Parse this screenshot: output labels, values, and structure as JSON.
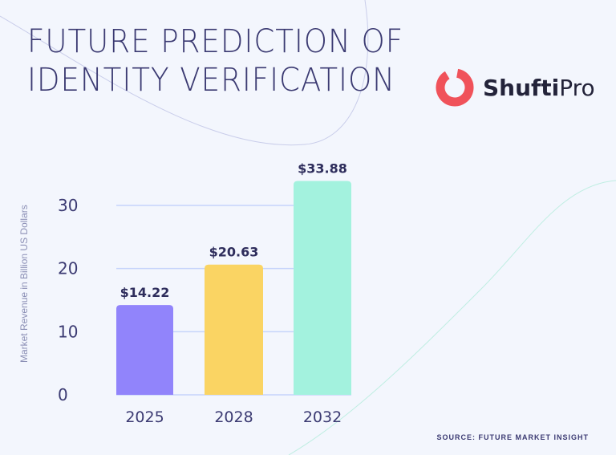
{
  "title_lines": [
    "FUTURE PREDICTION OF",
    "IDENTITY VERIFICATION"
  ],
  "logo": {
    "text_bold": "Shufti",
    "text_light": "Pro",
    "color": "#f0525a"
  },
  "source": "SOURCE: FUTURE MARKET INSIGHT",
  "chart_data": {
    "type": "bar",
    "title": "FUTURE PREDICTION OF IDENTITY VERIFICATION",
    "xlabel": "",
    "ylabel": "Market Revenue in Billion US Dollars",
    "categories": [
      "2025",
      "2028",
      "2032"
    ],
    "values": [
      14.22,
      20.63,
      33.88
    ],
    "data_labels": [
      "$14.22",
      "$20.63",
      "$33.88"
    ],
    "colors": [
      "#9184fb",
      "#fad463",
      "#a3f2de"
    ],
    "yticks": [
      "0",
      "10",
      "20",
      "30"
    ],
    "ylim": [
      0,
      30
    ],
    "grid": true,
    "legend": "none"
  }
}
